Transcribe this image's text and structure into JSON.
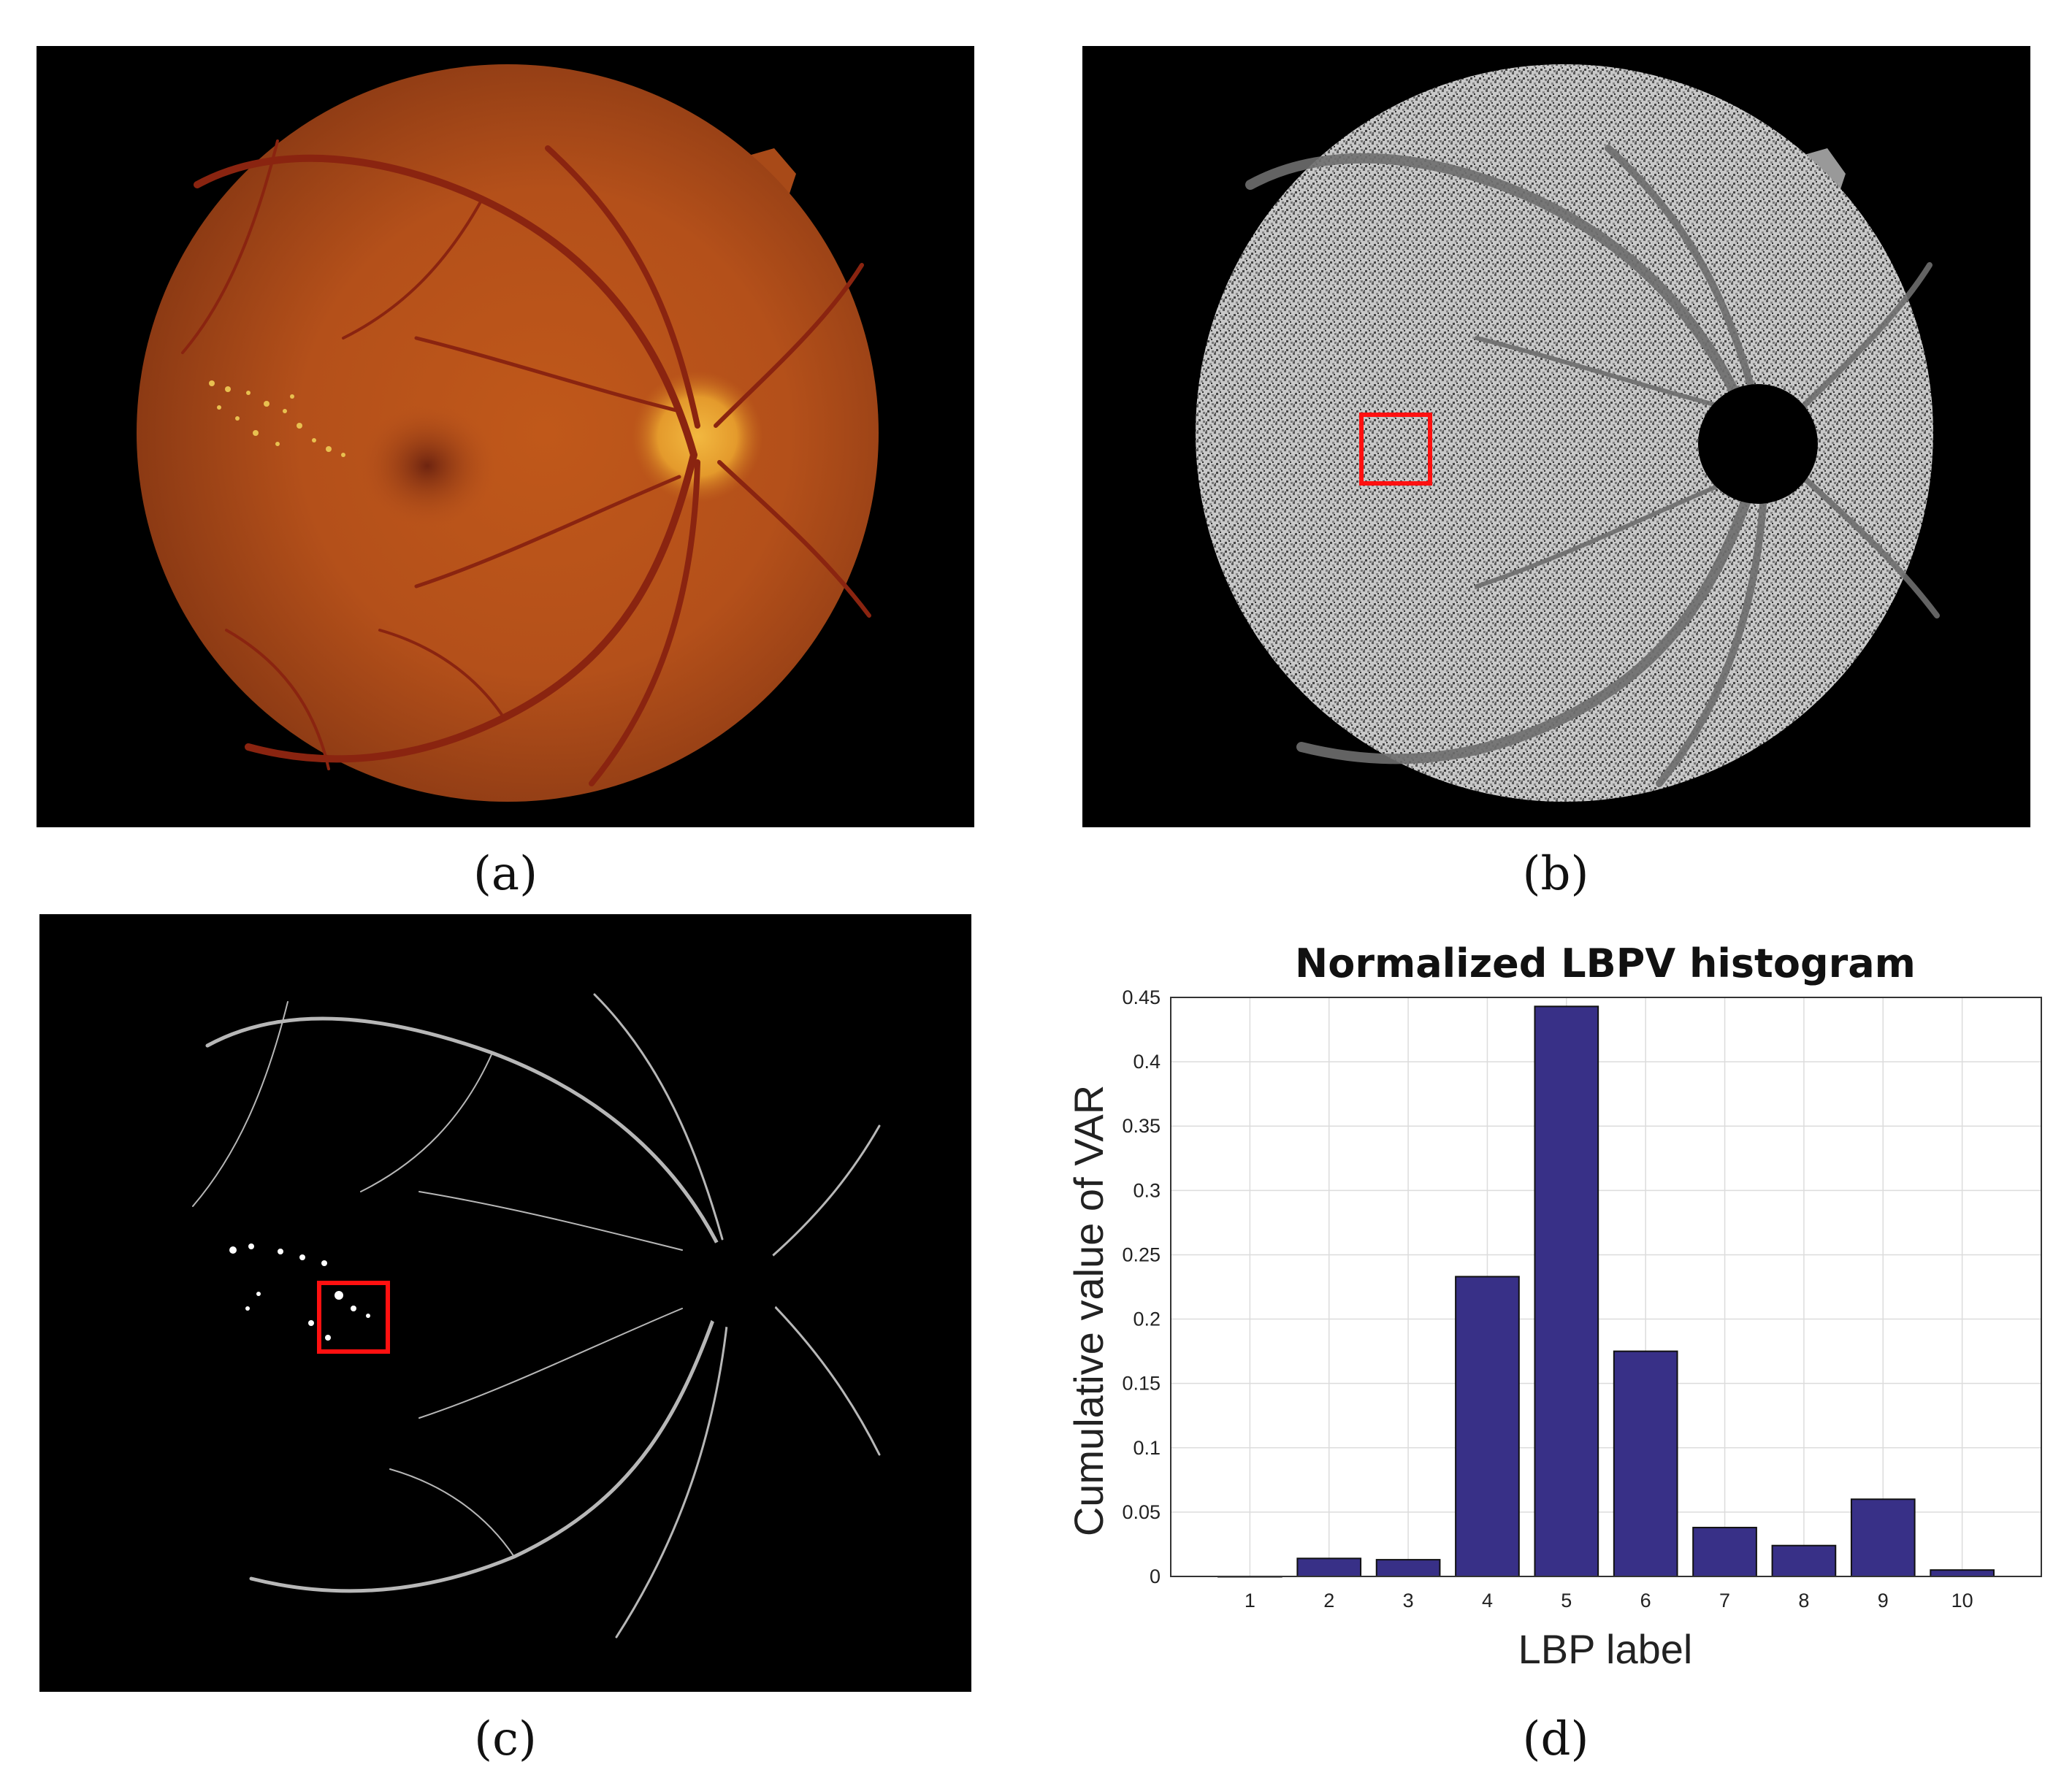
{
  "captions": {
    "a": "(a)",
    "b": "(b)",
    "c": "(c)",
    "d": "(d)"
  },
  "panel_a": {
    "description_icon": "retina-fundus-photo"
  },
  "panel_b": {
    "description_icon": "lbp-texture-map"
  },
  "panel_c": {
    "description_icon": "variance-map"
  },
  "chart_data": {
    "type": "bar",
    "title": "Normalized LBPV histogram",
    "xlabel": "LBP label",
    "ylabel": "Cumulative value of VAR",
    "categories": [
      "1",
      "2",
      "3",
      "4",
      "5",
      "6",
      "7",
      "8",
      "9",
      "10"
    ],
    "values": [
      0.0,
      0.014,
      0.013,
      0.233,
      0.443,
      0.175,
      0.038,
      0.024,
      0.06,
      0.005
    ],
    "xlim": [
      0,
      11
    ],
    "ylim": [
      0,
      0.45
    ],
    "yticks": [
      "0",
      "0.05",
      "0.1",
      "0.15",
      "0.2",
      "0.25",
      "0.3",
      "0.35",
      "0.4",
      "0.45"
    ],
    "grid": true,
    "bar_color": "#383087"
  }
}
